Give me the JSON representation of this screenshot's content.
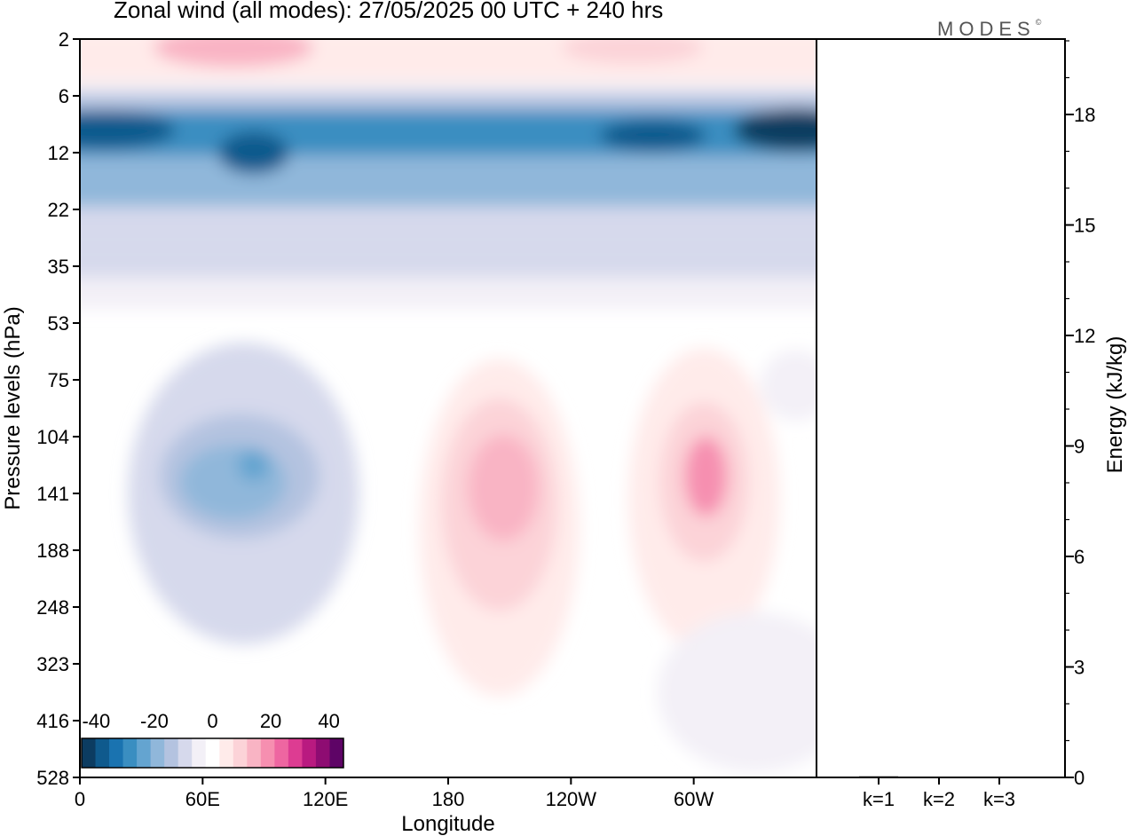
{
  "title": "Zonal wind (all modes):  27/05/2025  00 UTC  + 240 hrs",
  "logo_text": "MODES",
  "logo_mark": "©",
  "chart_data": [
    {
      "type": "heatmap",
      "title": "Zonal wind (all modes):  27/05/2025  00 UTC  + 240 hrs",
      "xlabel": "Longitude",
      "ylabel": "Pressure levels (hPa)",
      "x_tick_labels": [
        "0",
        "60E",
        "120E",
        "180",
        "120W",
        "60W"
      ],
      "x_tick_values_deg": [
        0,
        60,
        120,
        180,
        240,
        300
      ],
      "xlim_deg": [
        0,
        360
      ],
      "y_tick_labels": [
        "2",
        "6",
        "12",
        "22",
        "35",
        "53",
        "75",
        "104",
        "141",
        "188",
        "248",
        "323",
        "416",
        "528"
      ],
      "y_axis": "pressure levels, top to bottom",
      "colorbar": {
        "tick_labels": [
          "-40",
          "-20",
          "0",
          "20",
          "40"
        ],
        "range": [
          -45,
          45
        ],
        "step": 5,
        "colors": [
          "#0c3c61",
          "#0f5a8d",
          "#1a73b0",
          "#3a8ec1",
          "#64a4d0",
          "#90b7da",
          "#b4c3e0",
          "#d6d9ec",
          "#f3f0f7",
          "#ffffff",
          "#ffebea",
          "#fcd3d8",
          "#f9b4c4",
          "#f68fb0",
          "#ee66a1",
          "#dd3c92",
          "#b91a80",
          "#8e0c72",
          "#5e0466"
        ],
        "placement": "bottom-left inside plot"
      },
      "field_features": [
        {
          "feature": "easterly core",
          "sign": "negative",
          "level": "12",
          "approx_min": -40
        },
        {
          "feature": "easterly band",
          "sign": "negative",
          "level": "22",
          "approx_min": -20
        },
        {
          "feature": "westerly band",
          "sign": "positive",
          "level": "2",
          "approx_max": 15
        },
        {
          "feature": "easterly cell",
          "sign": "negative",
          "level": "104-141",
          "longitude": "60E-120E",
          "approx_min": -25
        },
        {
          "feature": "westerly cell",
          "sign": "positive",
          "level": "104-188",
          "longitude": "180-140W",
          "approx_max": 20
        },
        {
          "feature": "westerly cell",
          "sign": "positive",
          "level": "104-141",
          "longitude": "80W-40W",
          "approx_max": 25
        }
      ]
    },
    {
      "type": "bar",
      "ylabel": "Energy (kJ/kg)",
      "categories": [
        "k=1",
        "k=2",
        "k=3"
      ],
      "values": [
        0.03,
        0.02,
        0.02
      ],
      "ylim": [
        0,
        20
      ],
      "y_tick_labels": [
        "0",
        "3",
        "6",
        "9",
        "12",
        "15",
        "18"
      ]
    }
  ]
}
